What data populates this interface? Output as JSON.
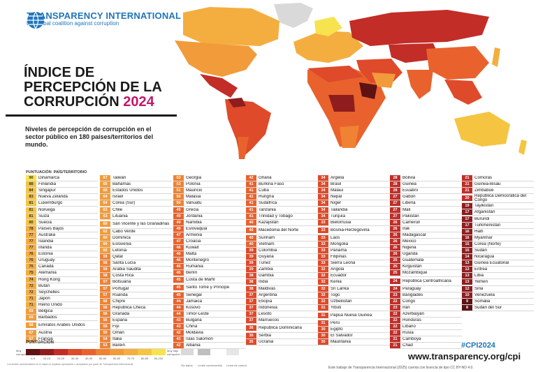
{
  "brand": {
    "name": "TRANSPARENCY INTERNATIONAL",
    "tagline": "the global coalition against corruption"
  },
  "title": {
    "line1": "ÍNDICE DE",
    "line2": "PERCEPCIÓN DE LA",
    "line3": "CORRUPCIÓN",
    "year": "2024"
  },
  "subtitle": "Niveles de percepción de corrupción en el sector público en 180 países/territorios del mundo.",
  "table_header": {
    "score": "PUNTUACIÓN",
    "country": "PAÍS/TERRITORIO"
  },
  "colors": {
    "s90": "#f7e34d",
    "s80": "#f5c542",
    "s70": "#f4ae3f",
    "s60": "#f29b3a",
    "s50": "#ef8233",
    "s40": "#e9622d",
    "s30": "#de4a2a",
    "s20": "#c22d27",
    "s10": "#8f1d1e",
    "s0": "#5e1214",
    "ocean": "#ffffff",
    "nodata": "#d9d9d9",
    "accent": "#1f75bb",
    "year": "#c0176a"
  },
  "columns": [
    [
      {
        "s": "90",
        "c": "Dinamarca"
      },
      {
        "s": "88",
        "c": "Finlandia"
      },
      {
        "s": "84",
        "c": "Singapur"
      },
      {
        "s": "83",
        "c": "Nueva Zelanda"
      },
      {
        "s": "81",
        "c": "Luxemburgo"
      },
      {
        "s": "81",
        "c": "Noruega"
      },
      {
        "s": "81",
        "c": "Suiza"
      },
      {
        "s": "80",
        "c": "Suecia"
      },
      {
        "s": "78",
        "c": "Países Bajos"
      },
      {
        "s": "77",
        "c": "Australia"
      },
      {
        "s": "77",
        "c": "Islandia"
      },
      {
        "s": "77",
        "c": "Irlanda"
      },
      {
        "s": "76",
        "c": "Estonia"
      },
      {
        "s": "76",
        "c": "Uruguay"
      },
      {
        "s": "75",
        "c": "Canadá"
      },
      {
        "s": "75",
        "c": "Alemania"
      },
      {
        "s": "74",
        "c": "Hong Kong"
      },
      {
        "s": "72",
        "c": "Bután"
      },
      {
        "s": "72",
        "c": "Seychelles"
      },
      {
        "s": "71",
        "c": "Japón"
      },
      {
        "s": "71",
        "c": "Reino Unido"
      },
      {
        "s": "69",
        "c": "Bélgica"
      },
      {
        "s": "69",
        "c": "Barbados"
      },
      {
        "s": "68",
        "c": "Emiratos Árabes Unidos",
        "t": true
      },
      {
        "s": "67",
        "c": "Austria"
      },
      {
        "s": "67",
        "c": "Francia"
      }
    ],
    [
      {
        "s": "67",
        "c": "Taiwán"
      },
      {
        "s": "65",
        "c": "Bahamas"
      },
      {
        "s": "65",
        "c": "Estados Unidos"
      },
      {
        "s": "64",
        "c": "Israel"
      },
      {
        "s": "64",
        "c": "Corea (Sur)"
      },
      {
        "s": "63",
        "c": "Chile"
      },
      {
        "s": "63",
        "c": "Lituania"
      },
      {
        "s": "60",
        "c": "San Vicente y las Granadinas",
        "t": true
      },
      {
        "s": "62",
        "c": "Cabo Verde"
      },
      {
        "s": "60",
        "c": "Dominica"
      },
      {
        "s": "60",
        "c": "Eslovenia"
      },
      {
        "s": "60",
        "c": "Letonia"
      },
      {
        "s": "59",
        "c": "Qatar"
      },
      {
        "s": "56",
        "c": "Santa Lucía"
      },
      {
        "s": "59",
        "c": "Arabia Saudita"
      },
      {
        "s": "58",
        "c": "Costa Rica"
      },
      {
        "s": "57",
        "c": "Botsuana"
      },
      {
        "s": "57",
        "c": "Portugal"
      },
      {
        "s": "57",
        "c": "Ruanda"
      },
      {
        "s": "56",
        "c": "Chipre"
      },
      {
        "s": "56",
        "c": "República Checa"
      },
      {
        "s": "56",
        "c": "Granada"
      },
      {
        "s": "56",
        "c": "España"
      },
      {
        "s": "55",
        "c": "Fiyi"
      },
      {
        "s": "55",
        "c": "Omán"
      },
      {
        "s": "54",
        "c": "Italia"
      },
      {
        "s": "53",
        "c": "Baréin"
      }
    ],
    [
      {
        "s": "53",
        "c": "Georgia"
      },
      {
        "s": "53",
        "c": "Polonia"
      },
      {
        "s": "51",
        "c": "Mauricio"
      },
      {
        "s": "50",
        "c": "Malasia"
      },
      {
        "s": "50",
        "c": "Vanuatu"
      },
      {
        "s": "49",
        "c": "Grecia"
      },
      {
        "s": "49",
        "c": "Jordania"
      },
      {
        "s": "49",
        "c": "Namibia"
      },
      {
        "s": "49",
        "c": "Eslovaquia"
      },
      {
        "s": "47",
        "c": "Armenia"
      },
      {
        "s": "47",
        "c": "Croacia"
      },
      {
        "s": "46",
        "c": "Kuwait"
      },
      {
        "s": "46",
        "c": "Malta"
      },
      {
        "s": "46",
        "c": "Montenegro"
      },
      {
        "s": "46",
        "c": "Rumania"
      },
      {
        "s": "45",
        "c": "Benín"
      },
      {
        "s": "45",
        "c": "Costa de Marfil"
      },
      {
        "s": "45",
        "c": "Santo Tomé y Príncipe",
        "t": true
      },
      {
        "s": "45",
        "c": "Senegal"
      },
      {
        "s": "44",
        "c": "Jamaica"
      },
      {
        "s": "44",
        "c": "Kosovo"
      },
      {
        "s": "44",
        "c": "Timor-Leste"
      },
      {
        "s": "43",
        "c": "Bulgaria"
      },
      {
        "s": "43",
        "c": "China"
      },
      {
        "s": "42",
        "c": "Moldavia"
      },
      {
        "s": "43",
        "c": "Islas Salomón"
      },
      {
        "s": "42",
        "c": "Albania"
      }
    ],
    [
      {
        "s": "42",
        "c": "Ghana"
      },
      {
        "s": "41",
        "c": "Burkina Faso"
      },
      {
        "s": "41",
        "c": "Cuba"
      },
      {
        "s": "41",
        "c": "Hungría"
      },
      {
        "s": "41",
        "c": "Sudáfrica"
      },
      {
        "s": "41",
        "c": "Tanzania"
      },
      {
        "s": "41",
        "c": "Trinidad y Tobago"
      },
      {
        "s": "40",
        "c": "Kazajistán"
      },
      {
        "s": "40",
        "c": "Macedonia del Norte",
        "t": true
      },
      {
        "s": "40",
        "c": "Surinam"
      },
      {
        "s": "40",
        "c": "Vietnam"
      },
      {
        "s": "39",
        "c": "Colombia"
      },
      {
        "s": "39",
        "c": "Guyana"
      },
      {
        "s": "39",
        "c": "Túnez"
      },
      {
        "s": "39",
        "c": "Zambia"
      },
      {
        "s": "38",
        "c": "Gambia"
      },
      {
        "s": "38",
        "c": "India"
      },
      {
        "s": "38",
        "c": "Maldivas"
      },
      {
        "s": "37",
        "c": "Argentina"
      },
      {
        "s": "37",
        "c": "Etiopía"
      },
      {
        "s": "37",
        "c": "Indonesia"
      },
      {
        "s": "37",
        "c": "Lesoto"
      },
      {
        "s": "37",
        "c": "Marruecos"
      },
      {
        "s": "36",
        "c": "República Dominicana",
        "t": true
      },
      {
        "s": "35",
        "c": "Serbia"
      },
      {
        "s": "35",
        "c": "Ucrania"
      }
    ],
    [
      {
        "s": "34",
        "c": "Argelia"
      },
      {
        "s": "34",
        "c": "Brasil"
      },
      {
        "s": "34",
        "c": "Malaui"
      },
      {
        "s": "34",
        "c": "Nepal"
      },
      {
        "s": "34",
        "c": "Níger"
      },
      {
        "s": "34",
        "c": "Tailandia"
      },
      {
        "s": "34",
        "c": "Turquía"
      },
      {
        "s": "33",
        "c": "Bielorrusia"
      },
      {
        "s": "33",
        "c": "Bosnia-Herzegovina",
        "t": true
      },
      {
        "s": "33",
        "c": "Laos"
      },
      {
        "s": "33",
        "c": "Mongolia"
      },
      {
        "s": "33",
        "c": "Panamá"
      },
      {
        "s": "33",
        "c": "Filipinas"
      },
      {
        "s": "33",
        "c": "Sierra Leona"
      },
      {
        "s": "32",
        "c": "Angola"
      },
      {
        "s": "32",
        "c": "Ecuador"
      },
      {
        "s": "32",
        "c": "Kenia"
      },
      {
        "s": "32",
        "c": "Sri Lanka"
      },
      {
        "s": "32",
        "c": "Togo"
      },
      {
        "s": "32",
        "c": "Uzbekistán"
      },
      {
        "s": "31",
        "c": "Yibuti"
      },
      {
        "s": "31",
        "c": "Papúa Nueva Guinea",
        "t": true
      },
      {
        "s": "31",
        "c": "Perú"
      },
      {
        "s": "30",
        "c": "Egipto"
      },
      {
        "s": "30",
        "c": "El Salvador"
      },
      {
        "s": "30",
        "c": "Mauritania"
      }
    ],
    [
      {
        "s": "28",
        "c": "Bolivia"
      },
      {
        "s": "28",
        "c": "Guinea"
      },
      {
        "s": "28",
        "c": "Esuatini"
      },
      {
        "s": "27",
        "c": "Gabón"
      },
      {
        "s": "27",
        "c": "Liberia"
      },
      {
        "s": "27",
        "c": "Malí"
      },
      {
        "s": "27",
        "c": "Pakistán"
      },
      {
        "s": "26",
        "c": "Camerún"
      },
      {
        "s": "26",
        "c": "Irak"
      },
      {
        "s": "26",
        "c": "Madagascar"
      },
      {
        "s": "26",
        "c": "México"
      },
      {
        "s": "26",
        "c": "Nigeria"
      },
      {
        "s": "26",
        "c": "Uganda"
      },
      {
        "s": "25",
        "c": "Guatemala"
      },
      {
        "s": "25",
        "c": "Kirguistán"
      },
      {
        "s": "25",
        "c": "Mozambique"
      },
      {
        "s": "24",
        "c": "República Centroafricana",
        "t": true
      },
      {
        "s": "24",
        "c": "Paraguay"
      },
      {
        "s": "23",
        "c": "Bangladés"
      },
      {
        "s": "22",
        "c": "Congo"
      },
      {
        "s": "23",
        "c": "Irán"
      },
      {
        "s": "22",
        "c": "Azerbaiyán"
      },
      {
        "s": "22",
        "c": "Honduras"
      },
      {
        "s": "22",
        "c": "Líbano"
      },
      {
        "s": "22",
        "c": "Rusia"
      },
      {
        "s": "21",
        "c": "Camboya"
      },
      {
        "s": "21",
        "c": "Chad"
      }
    ],
    [
      {
        "s": "21",
        "c": "Comoras"
      },
      {
        "s": "21",
        "c": "Guinea-Bisáu"
      },
      {
        "s": "21",
        "c": "Zimbabue"
      },
      {
        "s": "20",
        "c": "República Democrática del Congo",
        "t": true
      },
      {
        "s": "19",
        "c": "Tayikistán"
      },
      {
        "s": "17",
        "c": "Afganistán"
      },
      {
        "s": "17",
        "c": "Burundi"
      },
      {
        "s": "17",
        "c": "Turkmenistán"
      },
      {
        "s": "16",
        "c": "Haití"
      },
      {
        "s": "16",
        "c": "Myanmar"
      },
      {
        "s": "15",
        "c": "Corea (Norte)"
      },
      {
        "s": "15",
        "c": "Sudán"
      },
      {
        "s": "14",
        "c": "Nicaragua"
      },
      {
        "s": "13",
        "c": "Guinea Ecuatorial"
      },
      {
        "s": "13",
        "c": "Eritrea"
      },
      {
        "s": "13",
        "c": "Libia"
      },
      {
        "s": "13",
        "c": "Yemen"
      },
      {
        "s": "12",
        "c": "Siria"
      },
      {
        "s": "10",
        "c": "Venezuela"
      },
      {
        "s": "9",
        "c": "Somalia"
      },
      {
        "s": "8",
        "c": "Sudán del Sur"
      }
    ]
  ],
  "legend": {
    "title": "PUNTUACIÓN",
    "left_label": "Muy corrupto",
    "right_label": "Muy bajo corrupción",
    "ranges": [
      "0-9",
      "10-19",
      "20-29",
      "30-39",
      "40-49",
      "50-59",
      "60-69",
      "70-79",
      "80-89",
      "90-100"
    ],
    "nodata_labels": [
      "Sin datos",
      "Límite controvertido",
      "Línea de control"
    ]
  },
  "hashtag": "#CPI2024",
  "url": "www.transparency.org/cpi",
  "license": "Este trabajo de Transparencia Internacional (2025) cuenta con licencia de tipo CC BY-ND 4.0.",
  "fine_print": "Los límites representados en el mapa no implican aprobación o aceptación por parte de Transparencia Internacional."
}
